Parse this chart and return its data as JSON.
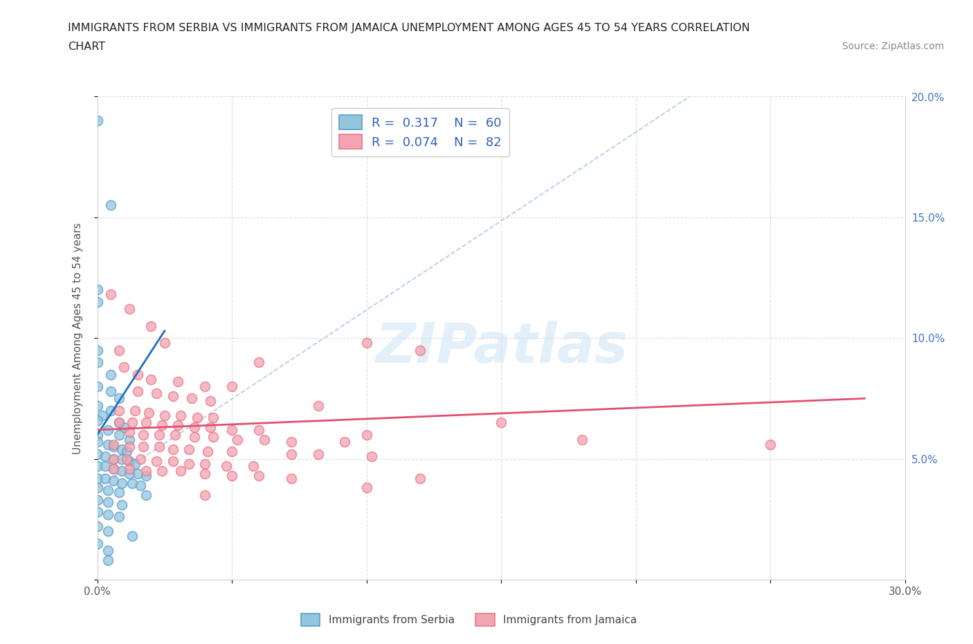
{
  "title_line1": "IMMIGRANTS FROM SERBIA VS IMMIGRANTS FROM JAMAICA UNEMPLOYMENT AMONG AGES 45 TO 54 YEARS CORRELATION",
  "title_line2": "CHART",
  "source_text": "Source: ZipAtlas.com",
  "ylabel": "Unemployment Among Ages 45 to 54 years",
  "xlim": [
    0.0,
    0.3
  ],
  "ylim": [
    0.0,
    0.2
  ],
  "xtick_pos": [
    0.0,
    0.05,
    0.1,
    0.15,
    0.2,
    0.25,
    0.3
  ],
  "xticklabels": [
    "0.0%",
    "",
    "",
    "",
    "",
    "",
    "30.0%"
  ],
  "ytick_pos": [
    0.0,
    0.05,
    0.1,
    0.15,
    0.2
  ],
  "yticklabels_right": [
    "",
    "5.0%",
    "10.0%",
    "15.0%",
    "20.0%"
  ],
  "serbia_color": "#92c5de",
  "jamaica_color": "#f4a3b0",
  "serbia_edge": "#5b9ec9",
  "jamaica_edge": "#e8758a",
  "serbia_R": "0.317",
  "serbia_N": "60",
  "jamaica_R": "0.074",
  "jamaica_N": "82",
  "watermark": "ZIPatlas",
  "serbia_scatter": [
    [
      0.0,
      0.19
    ],
    [
      0.005,
      0.155
    ],
    [
      0.0,
      0.12
    ],
    [
      0.0,
      0.115
    ],
    [
      0.0,
      0.095
    ],
    [
      0.0,
      0.09
    ],
    [
      0.005,
      0.085
    ],
    [
      0.0,
      0.08
    ],
    [
      0.005,
      0.078
    ],
    [
      0.008,
      0.075
    ],
    [
      0.0,
      0.072
    ],
    [
      0.005,
      0.07
    ],
    [
      0.002,
      0.068
    ],
    [
      0.0,
      0.066
    ],
    [
      0.008,
      0.065
    ],
    [
      0.01,
      0.063
    ],
    [
      0.004,
      0.062
    ],
    [
      0.0,
      0.06
    ],
    [
      0.008,
      0.06
    ],
    [
      0.012,
      0.058
    ],
    [
      0.0,
      0.057
    ],
    [
      0.004,
      0.056
    ],
    [
      0.006,
      0.055
    ],
    [
      0.009,
      0.054
    ],
    [
      0.011,
      0.053
    ],
    [
      0.0,
      0.052
    ],
    [
      0.003,
      0.051
    ],
    [
      0.006,
      0.05
    ],
    [
      0.009,
      0.05
    ],
    [
      0.012,
      0.049
    ],
    [
      0.014,
      0.048
    ],
    [
      0.0,
      0.047
    ],
    [
      0.003,
      0.047
    ],
    [
      0.006,
      0.046
    ],
    [
      0.009,
      0.045
    ],
    [
      0.012,
      0.044
    ],
    [
      0.015,
      0.044
    ],
    [
      0.018,
      0.043
    ],
    [
      0.0,
      0.042
    ],
    [
      0.003,
      0.042
    ],
    [
      0.006,
      0.041
    ],
    [
      0.009,
      0.04
    ],
    [
      0.013,
      0.04
    ],
    [
      0.016,
      0.039
    ],
    [
      0.0,
      0.038
    ],
    [
      0.004,
      0.037
    ],
    [
      0.008,
      0.036
    ],
    [
      0.018,
      0.035
    ],
    [
      0.0,
      0.033
    ],
    [
      0.004,
      0.032
    ],
    [
      0.009,
      0.031
    ],
    [
      0.0,
      0.028
    ],
    [
      0.004,
      0.027
    ],
    [
      0.008,
      0.026
    ],
    [
      0.0,
      0.022
    ],
    [
      0.004,
      0.02
    ],
    [
      0.013,
      0.018
    ],
    [
      0.0,
      0.015
    ],
    [
      0.004,
      0.012
    ],
    [
      0.004,
      0.008
    ]
  ],
  "jamaica_scatter": [
    [
      0.005,
      0.118
    ],
    [
      0.012,
      0.112
    ],
    [
      0.02,
      0.105
    ],
    [
      0.025,
      0.098
    ],
    [
      0.12,
      0.095
    ],
    [
      0.06,
      0.09
    ],
    [
      0.01,
      0.088
    ],
    [
      0.015,
      0.085
    ],
    [
      0.02,
      0.083
    ],
    [
      0.03,
      0.082
    ],
    [
      0.04,
      0.08
    ],
    [
      0.05,
      0.08
    ],
    [
      0.015,
      0.078
    ],
    [
      0.022,
      0.077
    ],
    [
      0.028,
      0.076
    ],
    [
      0.035,
      0.075
    ],
    [
      0.042,
      0.074
    ],
    [
      0.082,
      0.072
    ],
    [
      0.008,
      0.07
    ],
    [
      0.014,
      0.07
    ],
    [
      0.019,
      0.069
    ],
    [
      0.025,
      0.068
    ],
    [
      0.031,
      0.068
    ],
    [
      0.037,
      0.067
    ],
    [
      0.043,
      0.067
    ],
    [
      0.008,
      0.065
    ],
    [
      0.013,
      0.065
    ],
    [
      0.018,
      0.065
    ],
    [
      0.024,
      0.064
    ],
    [
      0.03,
      0.064
    ],
    [
      0.036,
      0.063
    ],
    [
      0.042,
      0.063
    ],
    [
      0.05,
      0.062
    ],
    [
      0.012,
      0.061
    ],
    [
      0.017,
      0.06
    ],
    [
      0.023,
      0.06
    ],
    [
      0.029,
      0.06
    ],
    [
      0.036,
      0.059
    ],
    [
      0.043,
      0.059
    ],
    [
      0.052,
      0.058
    ],
    [
      0.062,
      0.058
    ],
    [
      0.072,
      0.057
    ],
    [
      0.092,
      0.057
    ],
    [
      0.006,
      0.056
    ],
    [
      0.012,
      0.055
    ],
    [
      0.017,
      0.055
    ],
    [
      0.023,
      0.055
    ],
    [
      0.028,
      0.054
    ],
    [
      0.034,
      0.054
    ],
    [
      0.041,
      0.053
    ],
    [
      0.05,
      0.053
    ],
    [
      0.072,
      0.052
    ],
    [
      0.082,
      0.052
    ],
    [
      0.102,
      0.051
    ],
    [
      0.006,
      0.05
    ],
    [
      0.011,
      0.05
    ],
    [
      0.016,
      0.05
    ],
    [
      0.022,
      0.049
    ],
    [
      0.028,
      0.049
    ],
    [
      0.034,
      0.048
    ],
    [
      0.04,
      0.048
    ],
    [
      0.048,
      0.047
    ],
    [
      0.058,
      0.047
    ],
    [
      0.006,
      0.046
    ],
    [
      0.012,
      0.046
    ],
    [
      0.018,
      0.045
    ],
    [
      0.024,
      0.045
    ],
    [
      0.031,
      0.045
    ],
    [
      0.04,
      0.044
    ],
    [
      0.05,
      0.043
    ],
    [
      0.06,
      0.043
    ],
    [
      0.072,
      0.042
    ],
    [
      0.12,
      0.042
    ],
    [
      0.1,
      0.038
    ],
    [
      0.04,
      0.035
    ],
    [
      0.25,
      0.056
    ],
    [
      0.1,
      0.098
    ],
    [
      0.008,
      0.095
    ],
    [
      0.06,
      0.062
    ],
    [
      0.1,
      0.06
    ],
    [
      0.15,
      0.065
    ],
    [
      0.18,
      0.058
    ]
  ],
  "serbia_line_x": [
    0.0,
    0.025
  ],
  "serbia_line_y": [
    0.06,
    0.103
  ],
  "jamaica_line_x": [
    0.0,
    0.285
  ],
  "jamaica_line_y": [
    0.062,
    0.075
  ],
  "dash_line_x": [
    0.0,
    0.22
  ],
  "dash_line_y": [
    0.038,
    0.2
  ],
  "serbia_line_color": "#1a6fbf",
  "jamaica_line_color": "#e05070",
  "dash_line_color": "#aac8e8",
  "background_color": "#ffffff",
  "grid_color": "#dddddd"
}
